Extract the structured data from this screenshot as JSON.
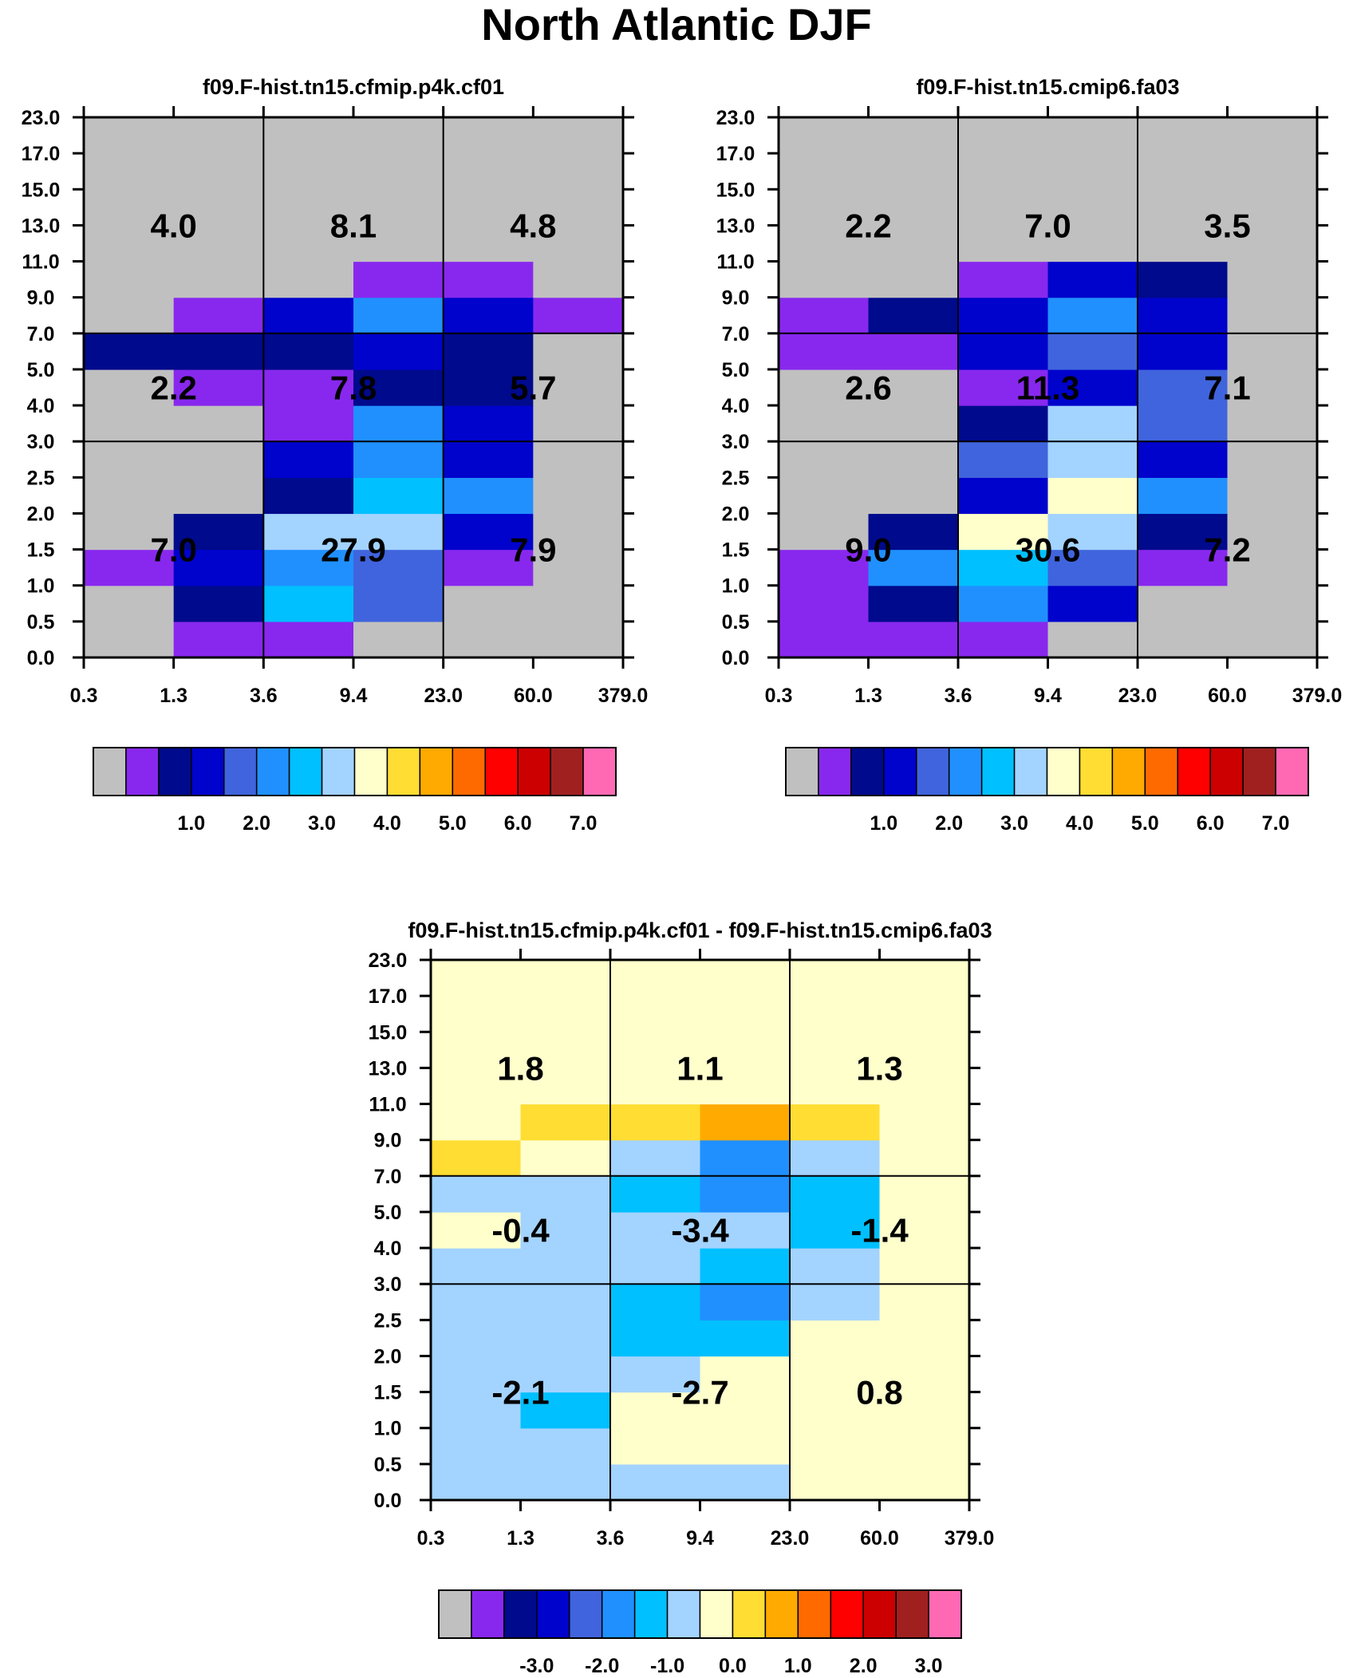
{
  "figure_title": "North Atlantic DJF",
  "colors": {
    "fill_value": "#c0c0c0",
    "line": "#000000",
    "palette": [
      "#c0c0c0",
      "#8828ee",
      "#000a8c",
      "#0003cc",
      "#4064dd",
      "#2090ff",
      "#00c0ff",
      "#a3d3ff",
      "#ffffcc",
      "#ffdd33",
      "#ffaa00",
      "#ff6a00",
      "#ff0000",
      "#cc0000",
      "#a02020",
      "#ff69b4"
    ]
  },
  "chart_data": [
    {
      "type": "heatmap",
      "title": "f09.F-hist.tn15.cfmip.p4k.cf01",
      "x_tick_labels": [
        "0.3",
        "1.3",
        "3.6",
        "9.4",
        "23.0",
        "60.0",
        "379.0"
      ],
      "y_tick_labels": [
        "0.0",
        "0.5",
        "1.0",
        "1.5",
        "2.0",
        "2.5",
        "3.0",
        "4.0",
        "5.0",
        "7.0",
        "9.0",
        "11.0",
        "13.0",
        "15.0",
        "17.0",
        "23.0"
      ],
      "rows_bottom_to_top": [
        [
          0,
          1,
          1,
          0,
          0,
          0
        ],
        [
          0,
          2,
          6,
          4,
          0,
          0
        ],
        [
          1,
          3,
          5,
          4,
          1,
          0
        ],
        [
          0,
          2,
          7,
          7,
          3,
          0
        ],
        [
          0,
          0,
          2,
          6,
          5,
          0
        ],
        [
          0,
          0,
          3,
          5,
          3,
          0
        ],
        [
          0,
          0,
          1,
          5,
          3,
          0
        ],
        [
          0,
          1,
          1,
          2,
          2,
          0
        ],
        [
          2,
          2,
          2,
          3,
          2,
          0
        ],
        [
          0,
          1,
          3,
          5,
          3,
          1
        ],
        [
          0,
          0,
          0,
          1,
          1,
          0
        ],
        [
          0,
          0,
          0,
          0,
          0,
          0
        ],
        [
          0,
          0,
          0,
          0,
          0,
          0
        ],
        [
          0,
          0,
          0,
          0,
          0,
          0
        ],
        [
          0,
          0,
          0,
          0,
          0,
          0
        ]
      ],
      "region_values": [
        [
          "4.0",
          "8.1",
          "4.8"
        ],
        [
          "2.2",
          "7.8",
          "5.7"
        ],
        [
          "7.0",
          "27.9",
          "7.9"
        ]
      ],
      "colorbar": {
        "labels": [
          "1.0",
          "2.0",
          "3.0",
          "4.0",
          "5.0",
          "6.0",
          "7.0"
        ],
        "boxes": [
          0,
          1,
          2,
          3,
          4,
          5,
          6,
          7,
          8,
          9,
          10,
          11,
          12,
          13,
          14,
          15
        ]
      }
    },
    {
      "type": "heatmap",
      "title": "f09.F-hist.tn15.cmip6.fa03",
      "x_tick_labels": [
        "0.3",
        "1.3",
        "3.6",
        "9.4",
        "23.0",
        "60.0",
        "379.0"
      ],
      "y_tick_labels": [
        "0.0",
        "0.5",
        "1.0",
        "1.5",
        "2.0",
        "2.5",
        "3.0",
        "4.0",
        "5.0",
        "7.0",
        "9.0",
        "11.0",
        "13.0",
        "15.0",
        "17.0",
        "23.0"
      ],
      "rows_bottom_to_top": [
        [
          1,
          1,
          1,
          0,
          0,
          0
        ],
        [
          1,
          2,
          5,
          3,
          0,
          0
        ],
        [
          1,
          5,
          6,
          4,
          1,
          0
        ],
        [
          0,
          2,
          8,
          7,
          2,
          0
        ],
        [
          0,
          0,
          3,
          8,
          5,
          0
        ],
        [
          0,
          0,
          4,
          7,
          3,
          0
        ],
        [
          0,
          0,
          2,
          7,
          4,
          0
        ],
        [
          0,
          0,
          1,
          3,
          4,
          0
        ],
        [
          1,
          1,
          3,
          4,
          3,
          0
        ],
        [
          1,
          2,
          3,
          5,
          3,
          0
        ],
        [
          0,
          0,
          1,
          3,
          2,
          0
        ],
        [
          0,
          0,
          0,
          0,
          0,
          0
        ],
        [
          0,
          0,
          0,
          0,
          0,
          0
        ],
        [
          0,
          0,
          0,
          0,
          0,
          0
        ],
        [
          0,
          0,
          0,
          0,
          0,
          0
        ]
      ],
      "region_values": [
        [
          "2.2",
          "7.0",
          "3.5"
        ],
        [
          "2.6",
          "11.3",
          "7.1"
        ],
        [
          "9.0",
          "30.6",
          "7.2"
        ]
      ],
      "colorbar": {
        "labels": [
          "1.0",
          "2.0",
          "3.0",
          "4.0",
          "5.0",
          "6.0",
          "7.0"
        ],
        "boxes": [
          0,
          1,
          2,
          3,
          4,
          5,
          6,
          7,
          8,
          9,
          10,
          11,
          12,
          13,
          14,
          15
        ]
      }
    },
    {
      "type": "heatmap",
      "title": "f09.F-hist.tn15.cfmip.p4k.cf01 - f09.F-hist.tn15.cmip6.fa03",
      "x_tick_labels": [
        "0.3",
        "1.3",
        "3.6",
        "9.4",
        "23.0",
        "60.0",
        "379.0"
      ],
      "y_tick_labels": [
        "0.0",
        "0.5",
        "1.0",
        "1.5",
        "2.0",
        "2.5",
        "3.0",
        "4.0",
        "5.0",
        "7.0",
        "9.0",
        "11.0",
        "13.0",
        "15.0",
        "17.0",
        "23.0"
      ],
      "rows_bottom_to_top": [
        [
          7,
          7,
          7,
          7,
          8,
          8
        ],
        [
          7,
          7,
          8,
          8,
          8,
          8
        ],
        [
          7,
          6,
          8,
          8,
          8,
          8
        ],
        [
          7,
          7,
          7,
          8,
          8,
          8
        ],
        [
          7,
          7,
          6,
          6,
          8,
          8
        ],
        [
          7,
          7,
          6,
          5,
          7,
          8
        ],
        [
          7,
          7,
          7,
          6,
          7,
          8
        ],
        [
          8,
          7,
          7,
          7,
          6,
          8
        ],
        [
          7,
          7,
          6,
          5,
          6,
          8
        ],
        [
          9,
          8,
          7,
          5,
          7,
          8
        ],
        [
          8,
          9,
          9,
          10,
          9,
          8
        ],
        [
          8,
          8,
          8,
          8,
          8,
          8
        ],
        [
          8,
          8,
          8,
          8,
          8,
          8
        ],
        [
          8,
          8,
          8,
          8,
          8,
          8
        ],
        [
          8,
          8,
          8,
          8,
          8,
          8
        ]
      ],
      "region_values": [
        [
          "1.8",
          "1.1",
          "1.3"
        ],
        [
          "-0.4",
          "-3.4",
          "-1.4"
        ],
        [
          "-2.1",
          "-2.7",
          "0.8"
        ]
      ],
      "colorbar": {
        "labels": [
          "-3.0",
          "-2.0",
          "-1.0",
          "0.0",
          "1.0",
          "2.0",
          "3.0"
        ],
        "boxes": [
          0,
          1,
          2,
          3,
          4,
          5,
          6,
          7,
          8,
          9,
          10,
          11,
          12,
          13,
          14,
          15
        ]
      }
    }
  ]
}
